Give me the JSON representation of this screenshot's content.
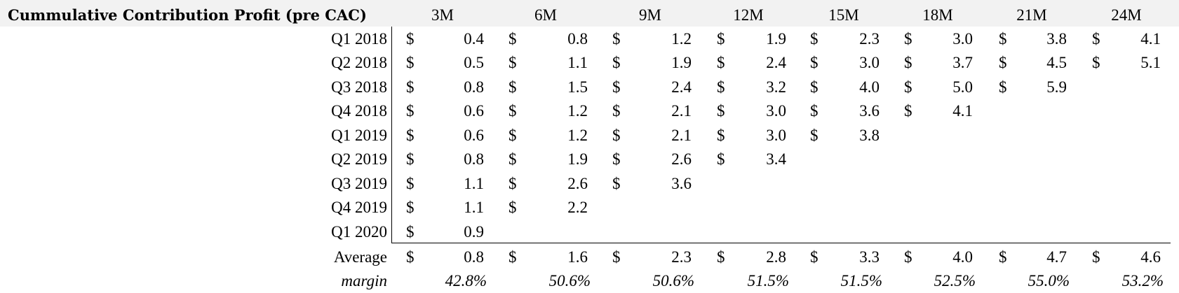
{
  "title": "Cummulative Contribution Profit (pre CAC)",
  "currency": "$",
  "columns": [
    "3M",
    "6M",
    "9M",
    "12M",
    "15M",
    "18M",
    "21M",
    "24M"
  ],
  "rows": [
    {
      "label": "Q1 2018",
      "values": [
        "0.4",
        "0.8",
        "1.2",
        "1.9",
        "2.3",
        "3.0",
        "3.8",
        "4.1"
      ]
    },
    {
      "label": "Q2 2018",
      "values": [
        "0.5",
        "1.1",
        "1.9",
        "2.4",
        "3.0",
        "3.7",
        "4.5",
        "5.1"
      ]
    },
    {
      "label": "Q3 2018",
      "values": [
        "0.8",
        "1.5",
        "2.4",
        "3.2",
        "4.0",
        "5.0",
        "5.9"
      ]
    },
    {
      "label": "Q4 2018",
      "values": [
        "0.6",
        "1.2",
        "2.1",
        "3.0",
        "3.6",
        "4.1"
      ]
    },
    {
      "label": "Q1 2019",
      "values": [
        "0.6",
        "1.2",
        "2.1",
        "3.0",
        "3.8"
      ]
    },
    {
      "label": "Q2 2019",
      "values": [
        "0.8",
        "1.9",
        "2.6",
        "3.4"
      ]
    },
    {
      "label": "Q3 2019",
      "values": [
        "1.1",
        "2.6",
        "3.6"
      ]
    },
    {
      "label": "Q4 2019",
      "values": [
        "1.1",
        "2.2"
      ]
    },
    {
      "label": "Q1 2020",
      "values": [
        "0.9"
      ]
    }
  ],
  "average": {
    "label": "Average",
    "values": [
      "0.8",
      "1.6",
      "2.3",
      "2.8",
      "3.3",
      "4.0",
      "4.7",
      "4.6"
    ]
  },
  "margin": {
    "label": "margin",
    "values": [
      "42.8%",
      "50.6%",
      "50.6%",
      "51.5%",
      "51.5%",
      "52.5%",
      "55.0%",
      "53.2%"
    ]
  }
}
